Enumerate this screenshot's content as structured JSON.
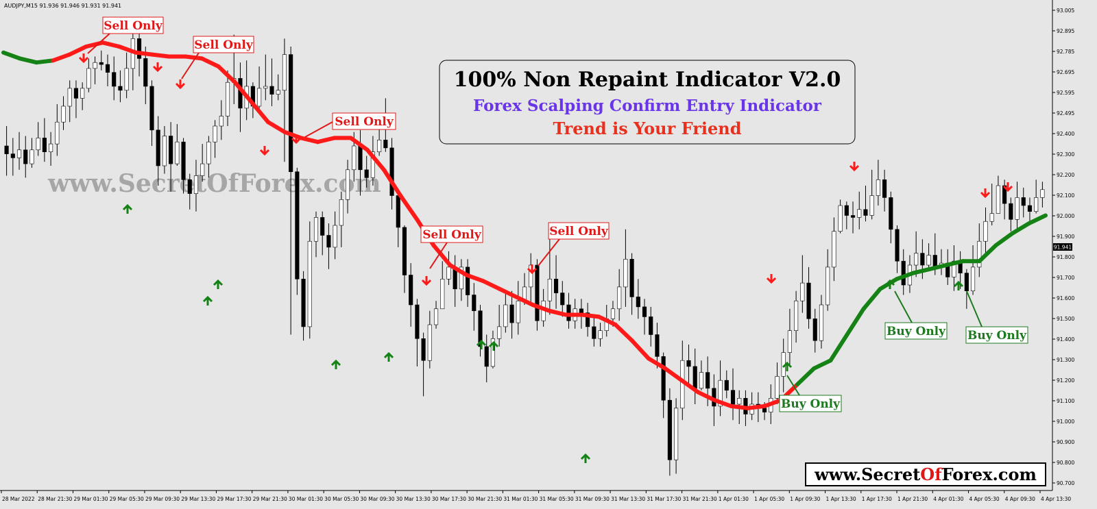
{
  "symbol_header": "AUDJPY,M15  91.936 91.946 91.931 91.941",
  "current_price": "91.941",
  "watermark": "www.SecretOfForex.com",
  "footer_brand": {
    "part1": "www.Secret",
    "part2": "Of",
    "part3": "Forex.com"
  },
  "title_box": {
    "line1": "100% Non Repaint Indicator V2.0",
    "line2": "Forex Scalping Confirm Entry Indicator",
    "line3": "Trend is Your Friend"
  },
  "colors": {
    "background": "#e6e6e6",
    "candle": "#000000",
    "trend_down": "#ff1a1a",
    "trend_up": "#148214",
    "sell_label": "#e01818",
    "buy_label": "#1e7a1e",
    "subtitle_purple": "#6a35e8",
    "subtitle_red": "#e8301e"
  },
  "labels": {
    "sell": "Sell Only",
    "buy": "Buy Only"
  },
  "chart_data": {
    "type": "line",
    "title": "",
    "ylim": [
      90.7,
      93.1
    ],
    "y_ticks": [
      "93.005",
      "92.895",
      "92.785",
      "92.695",
      "92.595",
      "92.495",
      "92.400",
      "92.300",
      "92.200",
      "92.100",
      "92.000",
      "91.900",
      "91.800",
      "91.700",
      "91.600",
      "91.500",
      "91.400",
      "91.300",
      "91.200",
      "91.100",
      "91.000",
      "90.900",
      "90.800",
      "90.700"
    ],
    "x_ticks": [
      "28 Mar 2022",
      "28 Mar 21:30",
      "29 Mar 01:30",
      "29 Mar 05:30",
      "29 Mar 09:30",
      "29 Mar 13:30",
      "29 Mar 17:30",
      "29 Mar 21:30",
      "30 Mar 01:30",
      "30 Mar 05:30",
      "30 Mar 09:30",
      "30 Mar 13:30",
      "30 Mar 17:30",
      "30 Mar 21:30",
      "31 Mar 01:30",
      "31 Mar 05:30",
      "31 Mar 09:30",
      "31 Mar 13:30",
      "31 Mar 17:30",
      "31 Mar 21:30",
      "1 Apr 01:30",
      "1 Apr 05:30",
      "1 Apr 09:30",
      "1 Apr 13:30",
      "1 Apr 17:30",
      "1 Apr 21:30",
      "4 Apr 01:30",
      "4 Apr 05:30",
      "4 Apr 09:30",
      "4 Apr 13:30"
    ],
    "series": [
      {
        "values": [
          92.87,
          92.84,
          92.82,
          92.83,
          92.86,
          92.9,
          92.92,
          92.9,
          92.87,
          92.86,
          92.85,
          92.85,
          92.84,
          92.8,
          92.72,
          92.62,
          92.52,
          92.47,
          92.44,
          92.42,
          92.44,
          92.44,
          92.38,
          92.28,
          92.15,
          92.03,
          91.9,
          91.8,
          91.75,
          91.72,
          91.68,
          91.64,
          91.6,
          91.57,
          91.55,
          91.55,
          91.54,
          91.5,
          91.42,
          91.33,
          91.28,
          91.22,
          91.16,
          91.12,
          91.09,
          91.08,
          91.09,
          91.12,
          91.2,
          91.28,
          91.32,
          91.45,
          91.58,
          91.68,
          91.73,
          91.76,
          91.78,
          91.8,
          91.82,
          91.82,
          91.9,
          91.96,
          92.01,
          92.05
        ]
      }
    ],
    "candles": [
      [
        92.4,
        92.36,
        92.5,
        92.25
      ],
      [
        92.36,
        92.34,
        92.44,
        92.25
      ],
      [
        92.34,
        92.38,
        92.47,
        92.28
      ],
      [
        92.38,
        92.31,
        92.45,
        92.24
      ],
      [
        92.31,
        92.38,
        92.44,
        92.29
      ],
      [
        92.38,
        92.44,
        92.52,
        92.35
      ],
      [
        92.44,
        92.37,
        92.54,
        92.32
      ],
      [
        92.37,
        92.41,
        92.47,
        92.3
      ],
      [
        92.41,
        92.52,
        92.61,
        92.35
      ],
      [
        92.52,
        92.6,
        92.65,
        92.48
      ],
      [
        92.6,
        92.69,
        92.73,
        92.52
      ],
      [
        92.69,
        92.64,
        92.73,
        92.54
      ],
      [
        92.64,
        92.69,
        92.72,
        92.58
      ],
      [
        92.69,
        92.79,
        92.84,
        92.67
      ],
      [
        92.79,
        92.82,
        92.85,
        92.71
      ],
      [
        92.82,
        92.81,
        92.88,
        92.78
      ],
      [
        92.81,
        92.77,
        92.86,
        92.7
      ],
      [
        92.77,
        92.7,
        92.85,
        92.63
      ],
      [
        92.7,
        92.68,
        92.78,
        92.62
      ],
      [
        92.68,
        92.79,
        92.87,
        92.64
      ],
      [
        92.79,
        92.94,
        93.04,
        92.68
      ],
      [
        92.94,
        92.84,
        92.98,
        92.75
      ],
      [
        92.84,
        92.7,
        92.9,
        92.61
      ],
      [
        92.7,
        92.48,
        92.73,
        92.4
      ],
      [
        92.48,
        92.3,
        92.55,
        92.2
      ],
      [
        92.3,
        92.45,
        92.5,
        92.26
      ],
      [
        92.45,
        92.31,
        92.52,
        92.17
      ],
      [
        92.31,
        92.42,
        92.51,
        92.3
      ],
      [
        92.42,
        92.23,
        92.44,
        92.16
      ],
      [
        92.23,
        92.16,
        92.26,
        92.08
      ],
      [
        92.16,
        92.25,
        92.33,
        92.07
      ],
      [
        92.25,
        92.31,
        92.41,
        92.22
      ],
      [
        92.31,
        92.42,
        92.45,
        92.24
      ],
      [
        92.42,
        92.5,
        92.53,
        92.34
      ],
      [
        92.5,
        92.55,
        92.63,
        92.43
      ],
      [
        92.55,
        92.72,
        92.78,
        92.5
      ],
      [
        92.72,
        92.74,
        92.96,
        92.61
      ],
      [
        92.74,
        92.59,
        92.82,
        92.47
      ],
      [
        92.59,
        92.7,
        92.83,
        92.53
      ],
      [
        92.7,
        92.6,
        92.72,
        92.54
      ],
      [
        92.6,
        92.69,
        92.8,
        92.57
      ],
      [
        92.69,
        92.7,
        92.86,
        92.63
      ],
      [
        92.7,
        92.66,
        92.84,
        92.6
      ],
      [
        92.66,
        92.68,
        92.76,
        92.63
      ],
      [
        92.68,
        92.86,
        92.94,
        92.32
      ],
      [
        92.86,
        92.27,
        92.9,
        91.45
      ],
      [
        92.27,
        91.73,
        92.29,
        91.65
      ],
      [
        91.73,
        91.49,
        91.77,
        91.42
      ],
      [
        91.49,
        91.92,
        92.02,
        91.43
      ],
      [
        91.92,
        92.04,
        92.07,
        91.84
      ],
      [
        92.04,
        91.95,
        92.07,
        91.85
      ],
      [
        91.95,
        91.89,
        92.01,
        91.78
      ],
      [
        91.89,
        92.0,
        92.07,
        91.83
      ],
      [
        92.0,
        92.13,
        92.17,
        91.89
      ],
      [
        92.13,
        92.28,
        92.33,
        92.06
      ],
      [
        92.28,
        92.4,
        92.47,
        92.22
      ],
      [
        92.4,
        92.28,
        92.48,
        92.15
      ],
      [
        92.28,
        92.24,
        92.35,
        92.19
      ],
      [
        92.24,
        92.37,
        92.45,
        92.2
      ],
      [
        92.37,
        92.43,
        92.55,
        92.35
      ],
      [
        92.43,
        92.39,
        92.64,
        92.37
      ],
      [
        92.39,
        92.15,
        92.44,
        92.08
      ],
      [
        92.15,
        91.99,
        92.18,
        91.89
      ],
      [
        91.99,
        91.75,
        92.0,
        91.66
      ],
      [
        91.75,
        91.6,
        91.81,
        91.49
      ],
      [
        91.6,
        91.43,
        91.63,
        91.29
      ],
      [
        91.43,
        91.32,
        91.46,
        91.14
      ],
      [
        91.32,
        91.5,
        91.57,
        91.28
      ],
      [
        91.5,
        91.58,
        91.62,
        91.48
      ],
      [
        91.58,
        91.73,
        91.82,
        91.58
      ],
      [
        91.73,
        91.79,
        91.87,
        91.7
      ],
      [
        91.79,
        91.68,
        91.85,
        91.59
      ],
      [
        91.68,
        91.79,
        91.83,
        91.62
      ],
      [
        91.79,
        91.65,
        91.83,
        91.59
      ],
      [
        91.65,
        91.57,
        91.71,
        91.47
      ],
      [
        91.57,
        91.39,
        91.6,
        91.34
      ],
      [
        91.39,
        91.29,
        91.45,
        91.21
      ],
      [
        91.29,
        91.43,
        91.47,
        91.28
      ],
      [
        91.43,
        91.49,
        91.6,
        91.39
      ],
      [
        91.49,
        91.6,
        91.66,
        91.46
      ],
      [
        91.6,
        91.51,
        91.67,
        91.43
      ],
      [
        91.51,
        91.62,
        91.72,
        91.45
      ],
      [
        91.62,
        91.69,
        91.76,
        91.6
      ],
      [
        91.69,
        91.8,
        91.86,
        91.61
      ],
      [
        91.8,
        91.52,
        91.83,
        91.47
      ],
      [
        91.52,
        91.62,
        91.68,
        91.49
      ],
      [
        91.62,
        91.73,
        91.93,
        91.55
      ],
      [
        91.73,
        91.66,
        91.85,
        91.58
      ],
      [
        91.66,
        91.6,
        91.72,
        91.54
      ],
      [
        91.6,
        91.52,
        91.66,
        91.48
      ],
      [
        91.52,
        91.58,
        91.63,
        91.48
      ],
      [
        91.58,
        91.56,
        91.63,
        91.48
      ],
      [
        91.56,
        91.49,
        91.61,
        91.44
      ],
      [
        91.49,
        91.43,
        91.55,
        91.39
      ],
      [
        91.43,
        91.47,
        91.51,
        91.39
      ],
      [
        91.47,
        91.53,
        91.6,
        91.44
      ],
      [
        91.53,
        91.58,
        91.62,
        91.49
      ],
      [
        91.58,
        91.69,
        91.78,
        91.52
      ],
      [
        91.69,
        91.83,
        91.98,
        91.59
      ],
      [
        91.83,
        91.64,
        91.86,
        91.55
      ],
      [
        91.64,
        91.59,
        91.73,
        91.53
      ],
      [
        91.59,
        91.54,
        91.63,
        91.45
      ],
      [
        91.54,
        91.45,
        91.59,
        91.39
      ],
      [
        91.45,
        91.34,
        91.51,
        91.28
      ],
      [
        91.34,
        91.12,
        91.36,
        91.03
      ],
      [
        91.12,
        90.82,
        91.18,
        90.74
      ],
      [
        90.82,
        91.08,
        91.13,
        90.75
      ],
      [
        91.08,
        91.32,
        91.42,
        91.02
      ],
      [
        91.32,
        91.29,
        91.4,
        91.2
      ],
      [
        91.29,
        91.18,
        91.38,
        91.1
      ],
      [
        91.18,
        91.26,
        91.32,
        91.17
      ],
      [
        91.26,
        91.18,
        91.34,
        91.09
      ],
      [
        91.18,
        91.09,
        91.25,
        90.99
      ],
      [
        91.09,
        91.22,
        91.32,
        91.04
      ],
      [
        91.22,
        91.17,
        91.27,
        91.13
      ],
      [
        91.17,
        91.1,
        91.28,
        91.02
      ],
      [
        91.1,
        91.13,
        91.17,
        91.0
      ],
      [
        91.13,
        91.05,
        91.17,
        90.99
      ],
      [
        91.05,
        91.1,
        91.16,
        91.02
      ],
      [
        91.1,
        91.08,
        91.16,
        91.01
      ],
      [
        91.08,
        91.06,
        91.11,
        91.02
      ],
      [
        91.06,
        91.13,
        91.2,
        91.0
      ],
      [
        91.13,
        91.24,
        91.31,
        91.1
      ],
      [
        91.24,
        91.36,
        91.43,
        91.16
      ],
      [
        91.36,
        91.47,
        91.58,
        91.29
      ],
      [
        91.47,
        91.62,
        91.67,
        91.41
      ],
      [
        91.62,
        91.71,
        91.85,
        91.56
      ],
      [
        91.71,
        91.53,
        91.79,
        91.48
      ],
      [
        91.53,
        91.42,
        91.58,
        91.36
      ],
      [
        91.42,
        91.6,
        91.65,
        91.38
      ],
      [
        91.6,
        91.79,
        91.88,
        91.57
      ],
      [
        91.79,
        91.97,
        92.04,
        91.72
      ],
      [
        91.97,
        92.1,
        92.13,
        91.96
      ],
      [
        92.1,
        92.05,
        92.12,
        91.98
      ],
      [
        92.05,
        92.04,
        92.12,
        91.96
      ],
      [
        92.04,
        92.08,
        92.17,
        91.98
      ],
      [
        92.08,
        92.05,
        92.2,
        92.02
      ],
      [
        92.05,
        92.15,
        92.28,
        92.03
      ],
      [
        92.15,
        92.23,
        92.33,
        92.1
      ],
      [
        92.23,
        92.14,
        92.28,
        92.07
      ],
      [
        92.14,
        91.98,
        92.17,
        91.91
      ],
      [
        91.98,
        91.82,
        92.0,
        91.76
      ],
      [
        91.82,
        91.7,
        91.88,
        91.65
      ],
      [
        91.7,
        91.8,
        91.85,
        91.66
      ],
      [
        91.8,
        91.86,
        91.97,
        91.74
      ],
      [
        91.86,
        91.8,
        91.93,
        91.73
      ],
      [
        91.8,
        91.85,
        91.91,
        91.77
      ],
      [
        91.85,
        91.79,
        91.96,
        91.75
      ],
      [
        91.79,
        91.81,
        91.88,
        91.75
      ],
      [
        91.81,
        91.74,
        91.88,
        91.7
      ],
      [
        91.74,
        91.82,
        91.9,
        91.67
      ],
      [
        91.82,
        91.76,
        91.87,
        91.68
      ],
      [
        91.76,
        91.67,
        91.78,
        91.58
      ],
      [
        91.67,
        91.79,
        91.9,
        91.65
      ],
      [
        91.79,
        91.92,
        92.01,
        91.74
      ],
      [
        91.92,
        92.02,
        92.09,
        91.86
      ],
      [
        92.02,
        92.06,
        92.21,
        92.0
      ],
      [
        92.06,
        92.2,
        92.25,
        92.06
      ],
      [
        92.2,
        92.11,
        92.23,
        92.03
      ],
      [
        92.11,
        92.03,
        92.14,
        91.97
      ],
      [
        92.03,
        92.14,
        92.22,
        91.98
      ],
      [
        92.14,
        92.1,
        92.19,
        92.04
      ],
      [
        92.1,
        92.07,
        92.14,
        92.01
      ],
      [
        92.07,
        92.14,
        92.23,
        92.06
      ],
      [
        92.14,
        92.18,
        92.22,
        92.09
      ]
    ]
  }
}
